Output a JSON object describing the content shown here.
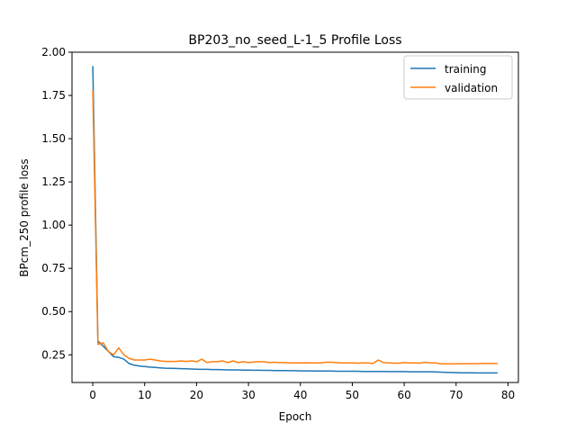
{
  "chart_data": {
    "type": "line",
    "title": "BP203_no_seed_L-1_5  Profile Loss",
    "xlabel": "Epoch",
    "ylabel": "BPcm_250 profile loss",
    "xlim": [
      -4,
      82
    ],
    "ylim": [
      0.09,
      2.0
    ],
    "xticks": [
      0,
      10,
      20,
      30,
      40,
      50,
      60,
      70,
      80
    ],
    "yticks": [
      0.25,
      0.5,
      0.75,
      1.0,
      1.25,
      1.5,
      1.75,
      2.0
    ],
    "ytick_labels": [
      "0.25",
      "0.50",
      "0.75",
      "1.00",
      "1.25",
      "1.50",
      "1.75",
      "2.00"
    ],
    "grid": false,
    "legend_position": "top-right",
    "x": [
      0,
      1,
      2,
      3,
      4,
      5,
      6,
      7,
      8,
      9,
      10,
      11,
      12,
      13,
      14,
      15,
      16,
      17,
      18,
      19,
      20,
      21,
      22,
      23,
      24,
      25,
      26,
      27,
      28,
      29,
      30,
      31,
      32,
      33,
      34,
      35,
      36,
      37,
      38,
      39,
      40,
      41,
      42,
      43,
      44,
      45,
      46,
      47,
      48,
      49,
      50,
      51,
      52,
      53,
      54,
      55,
      56,
      57,
      58,
      59,
      60,
      61,
      62,
      63,
      64,
      65,
      66,
      67,
      68,
      69,
      70,
      71,
      72,
      73,
      74,
      75,
      76,
      77,
      78
    ],
    "series": [
      {
        "name": "training",
        "color": "#1f77b4",
        "values": [
          1.92,
          0.33,
          0.3,
          0.27,
          0.24,
          0.235,
          0.225,
          0.2,
          0.19,
          0.185,
          0.182,
          0.179,
          0.177,
          0.175,
          0.173,
          0.172,
          0.171,
          0.17,
          0.169,
          0.168,
          0.167,
          0.166,
          0.166,
          0.165,
          0.165,
          0.164,
          0.163,
          0.163,
          0.163,
          0.162,
          0.162,
          0.161,
          0.161,
          0.16,
          0.16,
          0.159,
          0.159,
          0.159,
          0.158,
          0.158,
          0.157,
          0.157,
          0.157,
          0.156,
          0.156,
          0.156,
          0.156,
          0.155,
          0.155,
          0.155,
          0.155,
          0.155,
          0.154,
          0.154,
          0.154,
          0.154,
          0.154,
          0.153,
          0.153,
          0.153,
          0.153,
          0.152,
          0.152,
          0.152,
          0.152,
          0.152,
          0.151,
          0.15,
          0.149,
          0.148,
          0.147,
          0.146,
          0.146,
          0.146,
          0.145,
          0.145,
          0.145,
          0.145,
          0.145
        ]
      },
      {
        "name": "validation",
        "color": "#ff7f0e",
        "values": [
          1.78,
          0.31,
          0.32,
          0.27,
          0.25,
          0.29,
          0.25,
          0.23,
          0.22,
          0.22,
          0.22,
          0.225,
          0.22,
          0.215,
          0.212,
          0.212,
          0.212,
          0.215,
          0.212,
          0.215,
          0.21,
          0.225,
          0.205,
          0.21,
          0.21,
          0.215,
          0.205,
          0.215,
          0.205,
          0.21,
          0.205,
          0.208,
          0.21,
          0.21,
          0.205,
          0.207,
          0.205,
          0.205,
          0.203,
          0.203,
          0.203,
          0.204,
          0.203,
          0.203,
          0.203,
          0.207,
          0.207,
          0.205,
          0.203,
          0.203,
          0.203,
          0.202,
          0.203,
          0.203,
          0.2,
          0.22,
          0.205,
          0.203,
          0.202,
          0.202,
          0.205,
          0.203,
          0.203,
          0.202,
          0.207,
          0.203,
          0.203,
          0.198,
          0.198,
          0.198,
          0.198,
          0.199,
          0.199,
          0.199,
          0.199,
          0.2,
          0.2,
          0.2,
          0.2
        ]
      }
    ]
  }
}
